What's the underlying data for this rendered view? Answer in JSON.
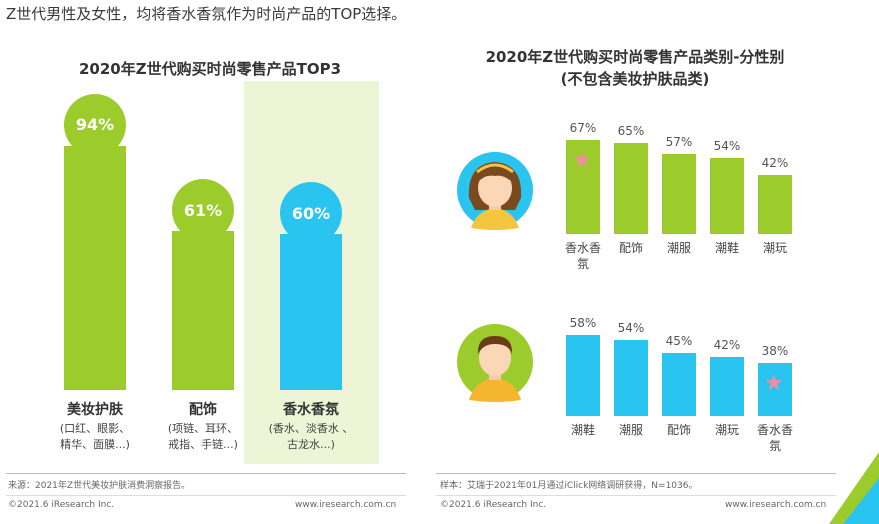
{
  "headline": "Z世代男性及女性，均将香水香氛作为时尚产品的TOP选择。",
  "colors": {
    "green": "#9ccc2c",
    "blue": "#29c4ef",
    "highlight": "#eef5d6",
    "star": "#f08fa0"
  },
  "chart_data": [
    {
      "type": "bar",
      "title": "2020年Z世代购买时尚零售产品TOP3",
      "categories": [
        "美妆护肤",
        "配饰",
        "香水香氛"
      ],
      "values": [
        94,
        61,
        60
      ],
      "value_labels": [
        "94%",
        "61%",
        "60%"
      ],
      "category_notes": [
        [
          "(口红、眼影、",
          "精华、面膜...)"
        ],
        [
          "(项链、耳环、",
          "戒指、手链...)"
        ],
        [
          "(香水、淡香水 、",
          "古龙水...)"
        ]
      ],
      "highlighted_category": "香水香氛",
      "ylim": [
        0,
        100
      ],
      "source": "来源：2021年Z世代美妆护肤消费洞察报告。",
      "copyright": "©2021.6 iResearch Inc.",
      "website": "www.iresearch.com.cn"
    },
    {
      "type": "bar",
      "title": "2020年Z世代购买时尚零售产品类别-分性别",
      "subtitle": "(不包含美妆护肤品类)",
      "series": [
        {
          "group": "女性",
          "categories": [
            "香水香氛",
            "配饰",
            "潮服",
            "潮鞋",
            "潮玩"
          ],
          "values": [
            67,
            65,
            57,
            54,
            42
          ],
          "value_labels": [
            "67%",
            "65%",
            "57%",
            "54%",
            "42%"
          ],
          "color": "#9ccc2c",
          "starred": "香水香氛"
        },
        {
          "group": "男性",
          "categories": [
            "潮鞋",
            "潮服",
            "配饰",
            "潮玩",
            "香水香氛"
          ],
          "values": [
            58,
            54,
            45,
            42,
            38
          ],
          "value_labels": [
            "58%",
            "54%",
            "45%",
            "42%",
            "38%"
          ],
          "color": "#29c4ef",
          "starred": "香水香氛"
        }
      ],
      "ylim": [
        0,
        100
      ],
      "sample_note": "样本：艾瑞于2021年01月通过iClick网络调研获得，N=1036。",
      "copyright": "©2021.6 iResearch Inc.",
      "website": "www.iresearch.com.cn"
    }
  ]
}
